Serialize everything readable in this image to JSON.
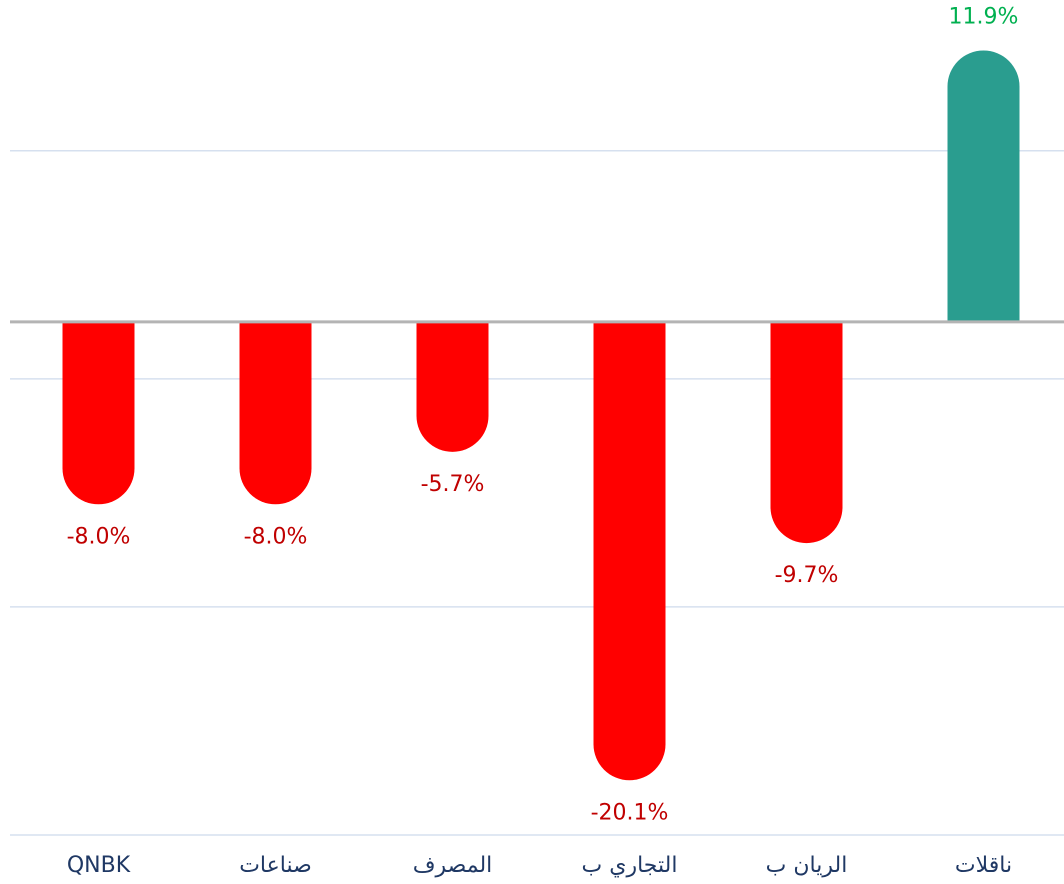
{
  "chart_data": {
    "type": "bar",
    "categories": [
      "QNBK",
      "صناعات",
      "المصرف",
      "التجاري ب",
      "الريان ب",
      "ناقلات"
    ],
    "values": [
      -8.0,
      -8.0,
      -5.7,
      -20.1,
      -9.7,
      11.9
    ],
    "value_labels": [
      "-8.0%",
      "-8.0%",
      "-5.7%",
      "-20.1%",
      "-9.7%",
      "11.9%"
    ],
    "colors": [
      "#ff0000",
      "#ff0000",
      "#ff0000",
      "#ff0000",
      "#ff0000",
      "#2a9d8f"
    ],
    "label_colors": [
      "#c00000",
      "#c00000",
      "#c00000",
      "#c00000",
      "#c00000",
      "#00b050"
    ],
    "ylim": [
      -22.5,
      14.2
    ],
    "yticks": [
      -22.5,
      -12.5,
      -2.5,
      7.5
    ],
    "grid": true
  }
}
